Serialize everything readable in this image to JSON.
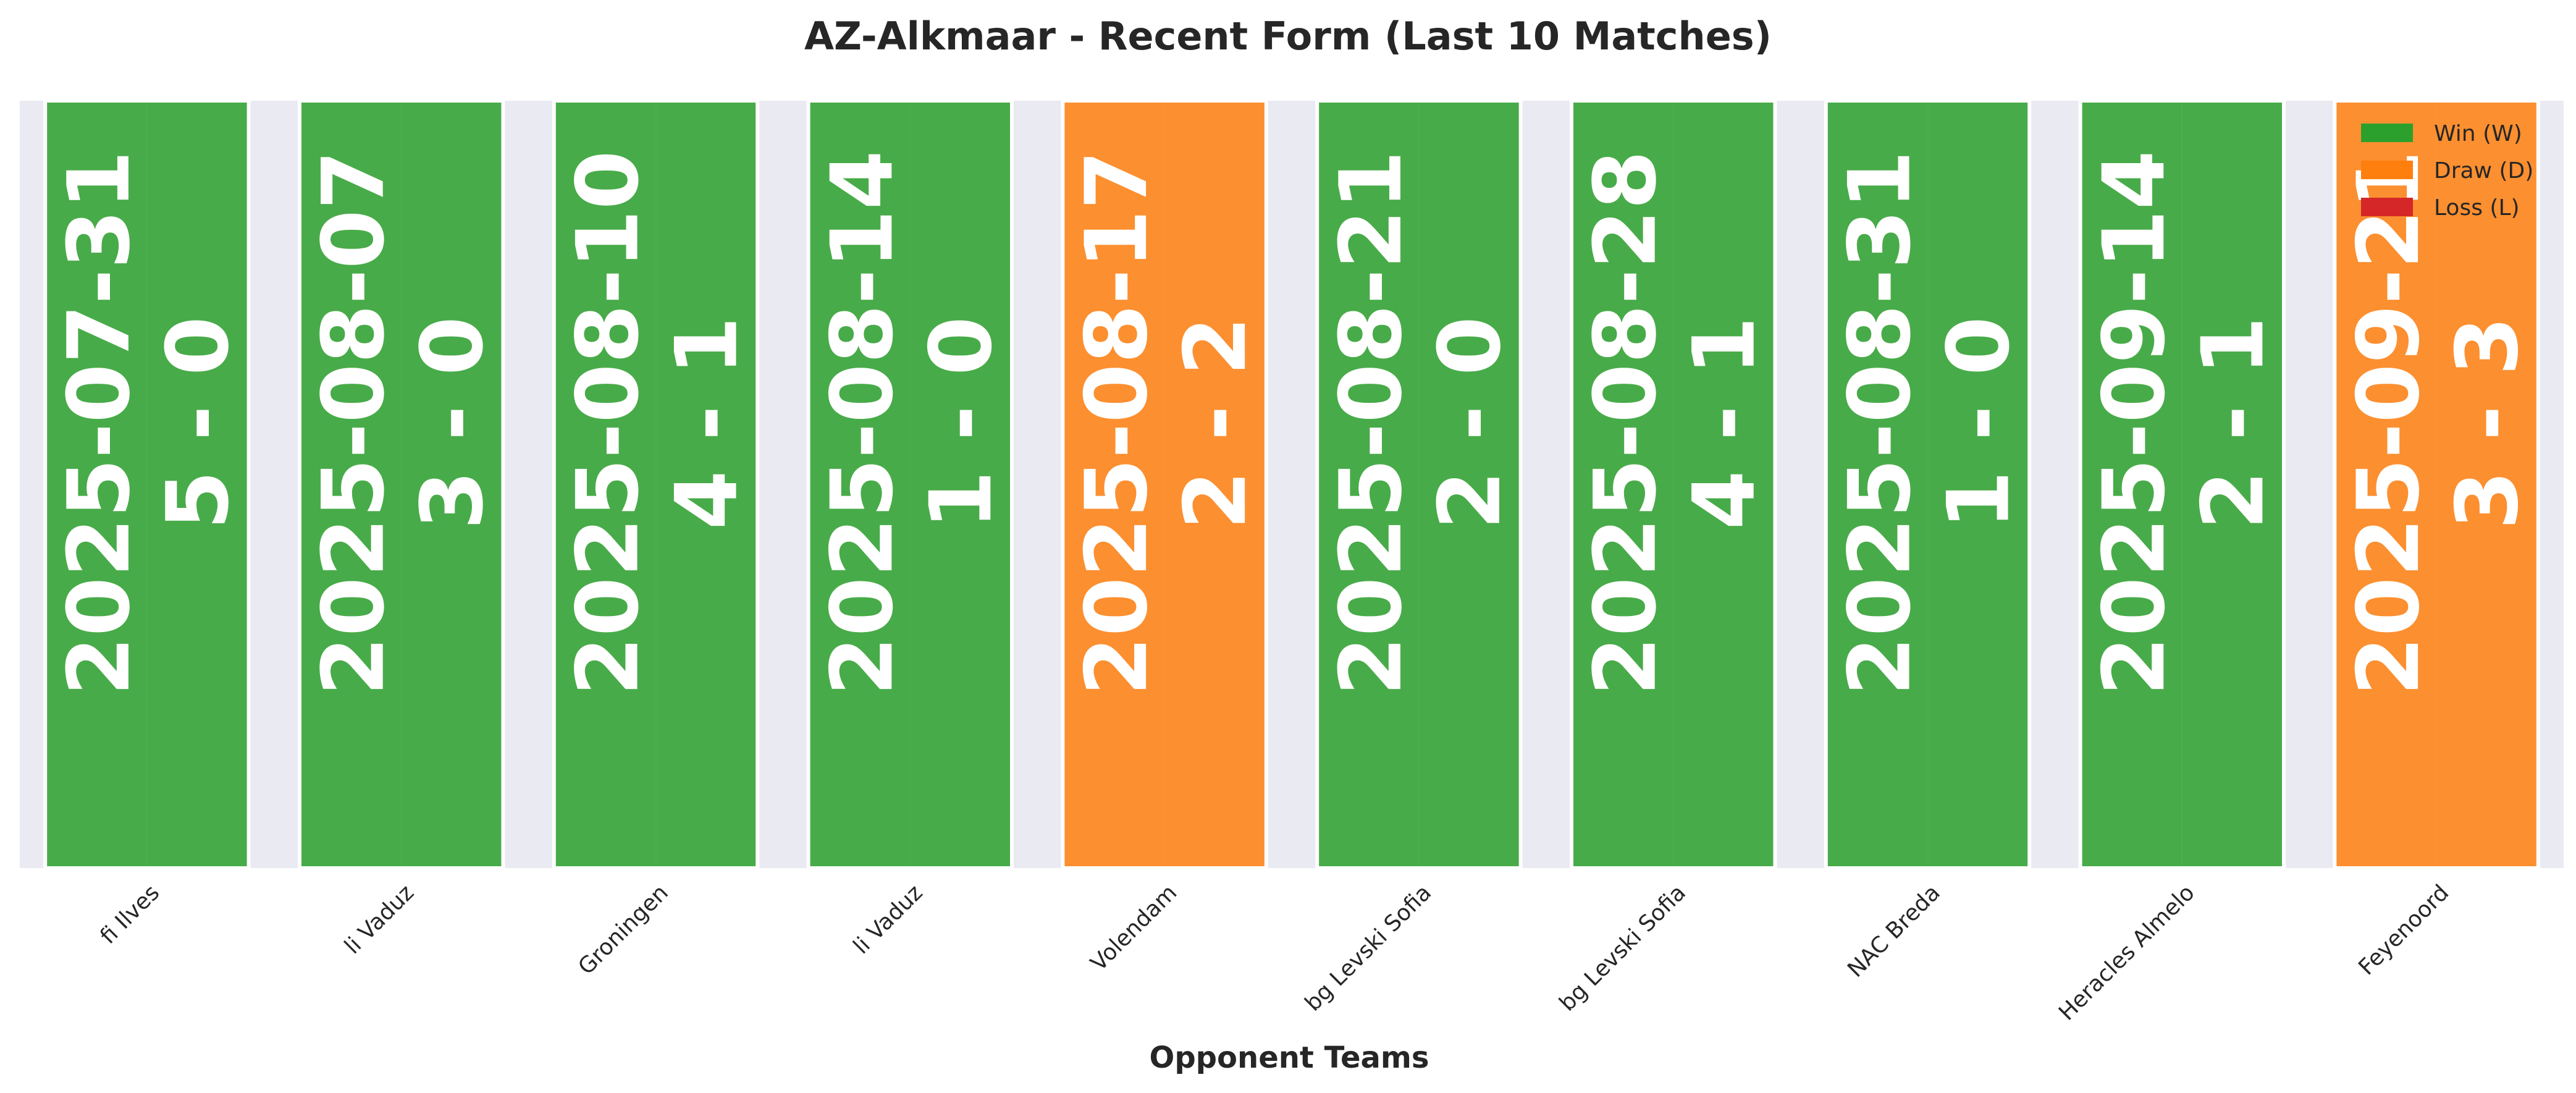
{
  "chart_data": {
    "type": "bar",
    "title": "AZ-Alkmaar - Recent Form (Last 10 Matches)",
    "xlabel": "Opponent Teams",
    "ylabel": "",
    "categories": [
      "fi Ilves",
      "li Vaduz",
      "Groningen",
      "li Vaduz",
      "Volendam",
      "bg Levski Sofia",
      "bg Levski Sofia",
      "NAC Breda",
      "Heracles Almelo",
      "Feyenoord"
    ],
    "values": [
      1,
      1,
      1,
      1,
      1,
      1,
      1,
      1,
      1,
      1
    ],
    "results": [
      "W",
      "W",
      "W",
      "W",
      "D",
      "W",
      "W",
      "W",
      "W",
      "D"
    ],
    "dates": [
      "2025-07-31",
      "2025-08-07",
      "2025-08-10",
      "2025-08-14",
      "2025-08-17",
      "2025-08-21",
      "2025-08-28",
      "2025-08-31",
      "2025-09-14",
      "2025-09-21"
    ],
    "scores": [
      "5 - 0",
      "3 - 0",
      "4 - 1",
      "1 - 0",
      "2 - 2",
      "2 - 0",
      "4 - 1",
      "1 - 0",
      "2 - 1",
      "3 - 3"
    ],
    "ylim": [
      0,
      1
    ],
    "grid": true,
    "legend_position": "top-right",
    "legend": [
      {
        "key": "W",
        "label": "Win (W)",
        "color": "#2ca02c"
      },
      {
        "key": "D",
        "label": "Draw (D)",
        "color": "#ff7f0e"
      },
      {
        "key": "L",
        "label": "Loss (L)",
        "color": "#d62728"
      }
    ],
    "colors": {
      "W": "#2ca02c",
      "D": "#ff7f0e",
      "L": "#d62728",
      "plot_background": "#eaeaf2",
      "grid": "#ffffff"
    }
  }
}
